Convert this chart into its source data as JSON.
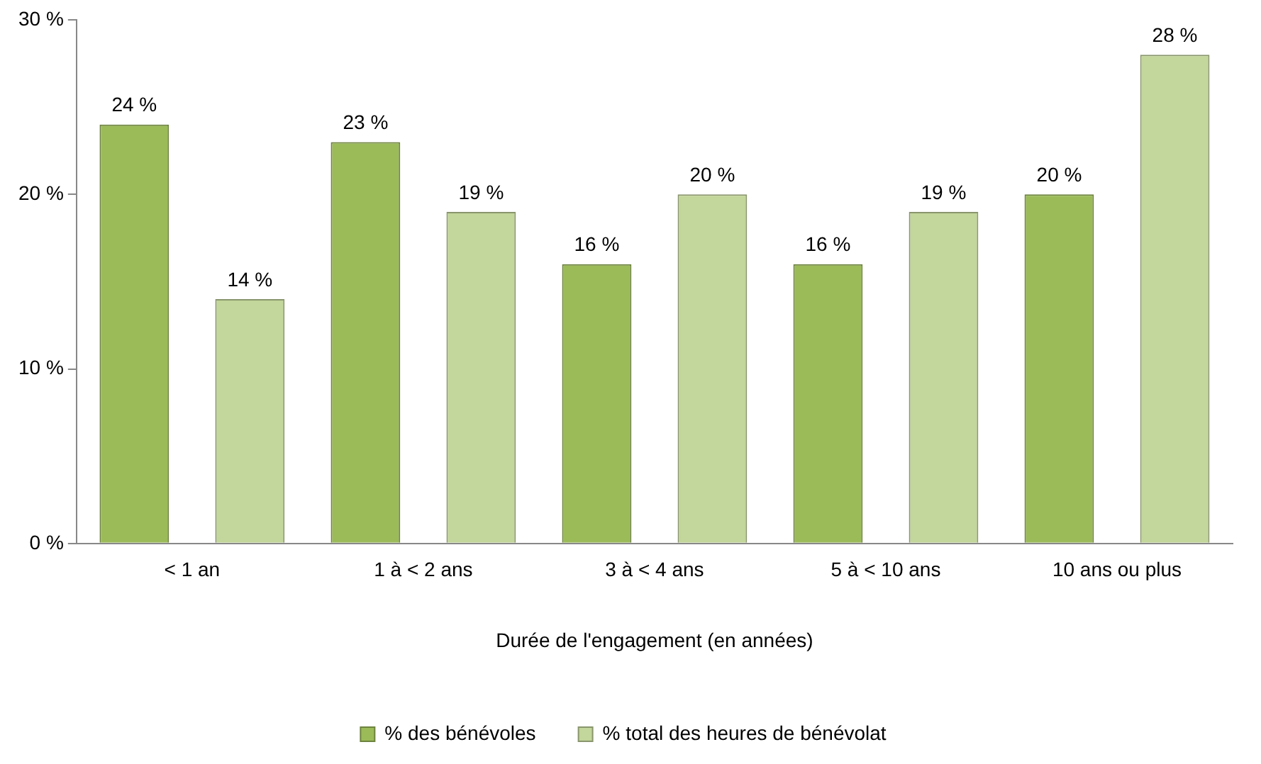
{
  "chart_data": {
    "type": "bar",
    "xlabel": "Durée de l'engagement (en années)",
    "categories": [
      "< 1 an",
      "1 à < 2 ans",
      "3 à < 4 ans",
      "5 à < 10 ans",
      "10 ans ou plus"
    ],
    "series": [
      {
        "name": "% des bénévoles",
        "color": "#9bbb59",
        "values": [
          24,
          23,
          16,
          16,
          20
        ],
        "value_labels": [
          "24 %",
          "23 %",
          "16 %",
          "16 %",
          "20 %"
        ]
      },
      {
        "name": "% total des heures de bénévolat",
        "color": "#c3d69b",
        "values": [
          14,
          19,
          20,
          19,
          28
        ],
        "value_labels": [
          "14 %",
          "19 %",
          "20 %",
          "19 %",
          "28 %"
        ]
      }
    ],
    "ylim": [
      0,
      30
    ],
    "yticks": [
      {
        "value": 0,
        "label": "0 %"
      },
      {
        "value": 10,
        "label": "10 %"
      },
      {
        "value": 20,
        "label": "20 %"
      },
      {
        "value": 30,
        "label": "30 %"
      }
    ],
    "grid": false,
    "legend": "bottom"
  }
}
